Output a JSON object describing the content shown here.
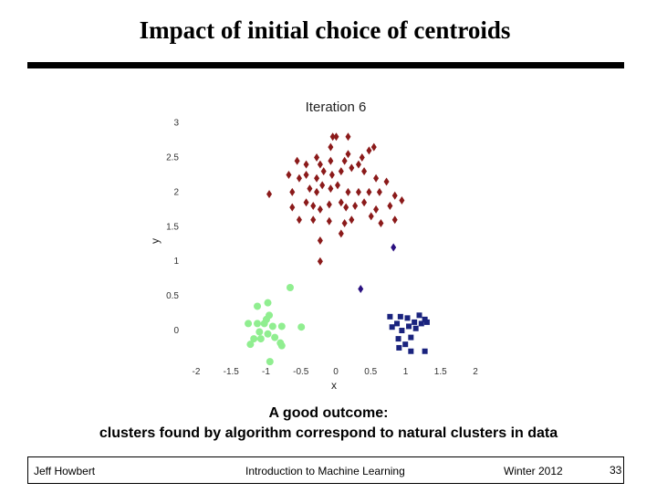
{
  "slide": {
    "title": "Impact of initial choice of centroids",
    "caption_line1": "A good outcome:",
    "caption_line2": "clusters found by algorithm correspond to natural clusters in data"
  },
  "footer": {
    "author": "Jeff Howbert",
    "course": "Introduction to Machine Learning",
    "date": "Winter 2012",
    "page": "33"
  },
  "chart_data": {
    "type": "scatter",
    "title": "Iteration 6",
    "xlabel": "x",
    "ylabel": "y",
    "xlim": [
      -2,
      2
    ],
    "ylim": [
      -0.3,
      3
    ],
    "grid": false,
    "x_ticks": [
      "-2",
      "-1.5",
      "-1",
      "-0.5",
      "0",
      "0.5",
      "1",
      "1.5",
      "2"
    ],
    "y_ticks": [
      "0",
      "0.5",
      "1",
      "1.5",
      "2",
      "2.5",
      "3"
    ],
    "series": [
      {
        "color": "#8b1a1a",
        "marker": "diamond",
        "points": [
          [
            -0.1,
            2.65
          ],
          [
            -0.07,
            2.8
          ],
          [
            -0.02,
            2.8
          ],
          [
            0.15,
            2.8
          ],
          [
            0.45,
            2.6
          ],
          [
            0.52,
            2.65
          ],
          [
            -0.58,
            2.45
          ],
          [
            -0.45,
            2.4
          ],
          [
            -0.3,
            2.5
          ],
          [
            -0.25,
            2.4
          ],
          [
            -0.1,
            2.45
          ],
          [
            0.1,
            2.45
          ],
          [
            0.15,
            2.55
          ],
          [
            0.3,
            2.4
          ],
          [
            0.35,
            2.5
          ],
          [
            -0.7,
            2.25
          ],
          [
            -0.55,
            2.2
          ],
          [
            -0.45,
            2.25
          ],
          [
            -0.3,
            2.2
          ],
          [
            -0.2,
            2.3
          ],
          [
            -0.08,
            2.25
          ],
          [
            0.05,
            2.3
          ],
          [
            0.2,
            2.35
          ],
          [
            0.38,
            2.3
          ],
          [
            0.55,
            2.2
          ],
          [
            0.7,
            2.15
          ],
          [
            -0.98,
            1.97
          ],
          [
            -0.65,
            2.0
          ],
          [
            -0.4,
            2.05
          ],
          [
            -0.3,
            2.0
          ],
          [
            -0.22,
            2.1
          ],
          [
            -0.1,
            2.05
          ],
          [
            0.0,
            2.1
          ],
          [
            0.15,
            2.0
          ],
          [
            0.3,
            2.0
          ],
          [
            0.45,
            2.0
          ],
          [
            0.6,
            2.0
          ],
          [
            0.82,
            1.95
          ],
          [
            -0.65,
            1.78
          ],
          [
            -0.45,
            1.85
          ],
          [
            -0.35,
            1.8
          ],
          [
            -0.25,
            1.75
          ],
          [
            -0.12,
            1.82
          ],
          [
            0.05,
            1.85
          ],
          [
            0.12,
            1.78
          ],
          [
            0.25,
            1.8
          ],
          [
            0.38,
            1.85
          ],
          [
            0.55,
            1.75
          ],
          [
            0.75,
            1.8
          ],
          [
            0.92,
            1.88
          ],
          [
            -0.55,
            1.6
          ],
          [
            -0.35,
            1.6
          ],
          [
            -0.12,
            1.58
          ],
          [
            0.1,
            1.55
          ],
          [
            0.2,
            1.6
          ],
          [
            0.48,
            1.65
          ],
          [
            0.62,
            1.55
          ],
          [
            0.82,
            1.6
          ],
          [
            -0.25,
            1.3
          ],
          [
            0.05,
            1.4
          ],
          [
            -0.25,
            1.0
          ]
        ]
      },
      {
        "color": "#1a237e",
        "marker": "square",
        "points": [
          [
            0.75,
            0.2
          ],
          [
            0.85,
            0.1
          ],
          [
            0.9,
            0.2
          ],
          [
            1.0,
            0.18
          ],
          [
            1.1,
            0.12
          ],
          [
            1.2,
            0.1
          ],
          [
            1.28,
            0.12
          ],
          [
            0.78,
            0.05
          ],
          [
            0.92,
            0.0
          ],
          [
            1.02,
            0.06
          ],
          [
            1.12,
            0.03
          ],
          [
            0.87,
            -0.12
          ],
          [
            1.05,
            -0.1
          ],
          [
            0.97,
            -0.2
          ],
          [
            0.88,
            -0.25
          ],
          [
            1.05,
            -0.3
          ],
          [
            1.25,
            -0.3
          ],
          [
            1.17,
            0.22
          ],
          [
            1.25,
            0.16
          ]
        ]
      },
      {
        "color": "#2a1080",
        "marker": "diamond",
        "points": [
          [
            0.8,
            1.2
          ],
          [
            0.33,
            0.6
          ]
        ]
      },
      {
        "color": "#90ee90",
        "marker": "circle",
        "points": [
          [
            -0.68,
            0.62
          ],
          [
            -1.0,
            0.4
          ],
          [
            -1.15,
            0.35
          ],
          [
            -0.98,
            0.22
          ],
          [
            -1.28,
            0.1
          ],
          [
            -1.15,
            0.1
          ],
          [
            -1.05,
            0.1
          ],
          [
            -0.93,
            0.06
          ],
          [
            -0.8,
            0.06
          ],
          [
            -0.52,
            0.05
          ],
          [
            -1.12,
            -0.02
          ],
          [
            -1.0,
            -0.05
          ],
          [
            -0.9,
            -0.1
          ],
          [
            -1.2,
            -0.12
          ],
          [
            -1.1,
            -0.12
          ],
          [
            -0.82,
            -0.18
          ],
          [
            -1.25,
            -0.2
          ],
          [
            -0.8,
            -0.22
          ],
          [
            -1.02,
            0.16
          ],
          [
            -0.97,
            -0.45
          ]
        ]
      }
    ]
  }
}
